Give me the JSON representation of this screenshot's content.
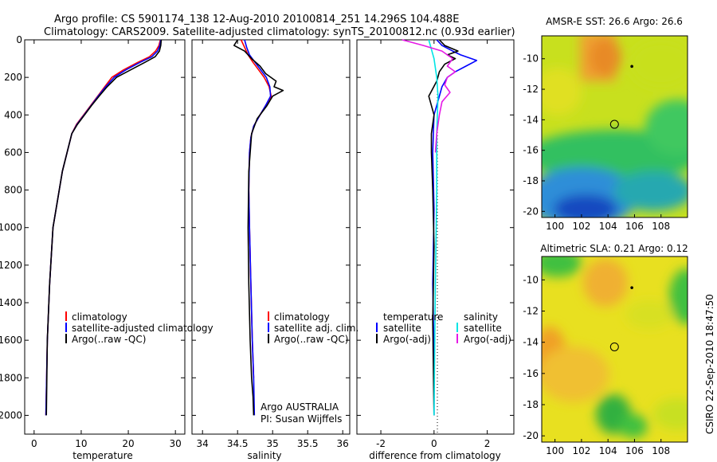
{
  "header": {
    "line1": "Argo profile: CS 5901174_138 12-Aug-2010 20100814_251 14.296S 104.488E",
    "line2": "Climatology: CARS2009. Satellite-adjusted climatology: synTS_20100812.nc (0.93d earlier)"
  },
  "side_label": "CSIRO 22-Sep-2010 18:47:50",
  "colors": {
    "red": "#ff0000",
    "blue": "#0000ff",
    "black": "#000000",
    "cyan": "#00e5e5",
    "magenta": "#e619e6"
  },
  "chart_data": [
    {
      "type": "line",
      "name": "temperature-panel",
      "xlabel": "temperature",
      "ylabel": "",
      "xlim": [
        -2,
        32
      ],
      "ylim": [
        0,
        2100
      ],
      "y_reversed": true,
      "xticks": [
        "0",
        "10",
        "20",
        "30"
      ],
      "xtick_values": [
        0,
        10,
        20,
        30
      ],
      "yticks": [
        "0",
        "200",
        "400",
        "600",
        "800",
        "1000",
        "1200",
        "1400",
        "1600",
        "1800",
        "2000"
      ],
      "ytick_values": [
        0,
        200,
        400,
        600,
        800,
        1000,
        1200,
        1400,
        1600,
        1800,
        2000
      ],
      "legend": [
        "climatology",
        "satellite-adjusted climatology",
        "Argo(..raw -QC)"
      ],
      "series": [
        {
          "name": "climatology",
          "color": "red",
          "x": [
            26.8,
            26.5,
            25.8,
            24.5,
            22.0,
            19.0,
            16.5,
            15.0,
            13.5,
            12.0,
            10.5,
            9.0,
            8.0,
            7.0,
            6.0,
            5.0,
            4.0,
            3.3,
            2.8,
            2.5
          ],
          "y": [
            0,
            30,
            60,
            90,
            120,
            160,
            200,
            250,
            300,
            350,
            400,
            450,
            500,
            600,
            700,
            850,
            1000,
            1300,
            1600,
            2000
          ]
        },
        {
          "name": "satellite-adjusted climatology",
          "color": "blue",
          "x": [
            26.9,
            26.7,
            26.2,
            25.0,
            22.5,
            19.5,
            17.0,
            15.2,
            13.6,
            12.1,
            10.6,
            9.1,
            8.0,
            7.0,
            6.0,
            5.0,
            4.0,
            3.3,
            2.8,
            2.5
          ],
          "y": [
            0,
            30,
            60,
            90,
            120,
            160,
            200,
            250,
            300,
            350,
            400,
            450,
            500,
            600,
            700,
            850,
            1000,
            1300,
            1600,
            2000
          ]
        },
        {
          "name": "Argo(..raw -QC)",
          "color": "black",
          "x": [
            27.0,
            26.9,
            26.6,
            25.7,
            23.5,
            20.5,
            17.5,
            15.5,
            13.8,
            12.2,
            10.7,
            9.2,
            8.0,
            7.0,
            6.0,
            5.0,
            4.0,
            3.3,
            2.8,
            2.6
          ],
          "y": [
            0,
            30,
            60,
            90,
            120,
            160,
            200,
            250,
            300,
            350,
            400,
            450,
            500,
            600,
            700,
            850,
            1000,
            1300,
            1600,
            2000
          ]
        }
      ]
    },
    {
      "type": "line",
      "name": "salinity-panel",
      "xlabel": "salinity",
      "ylabel": "",
      "xlim": [
        33.85,
        36.1
      ],
      "ylim": [
        0,
        2100
      ],
      "y_reversed": true,
      "xticks": [
        "34",
        "34.5",
        "35",
        "35.5",
        "36"
      ],
      "xtick_values": [
        34,
        34.5,
        35,
        35.5,
        36
      ],
      "legend": [
        "climatology",
        "satellite adj. clim.",
        "Argo(..raw -QC)"
      ],
      "annotation": [
        "Argo AUSTRALIA",
        "PI: Susan Wijffels"
      ],
      "series": [
        {
          "name": "climatology",
          "color": "red",
          "x": [
            34.55,
            34.6,
            34.65,
            34.72,
            34.8,
            34.88,
            34.95,
            34.98,
            34.9,
            34.82,
            34.73,
            34.69,
            34.67,
            34.66,
            34.67,
            34.69,
            34.71,
            34.73
          ],
          "y": [
            0,
            40,
            80,
            120,
            160,
            200,
            250,
            300,
            350,
            400,
            460,
            520,
            600,
            800,
            1000,
            1300,
            1600,
            1800
          ]
        },
        {
          "name": "satellite adj. clim.",
          "color": "blue",
          "x": [
            34.6,
            34.63,
            34.67,
            34.75,
            34.83,
            34.91,
            34.96,
            34.97,
            34.9,
            34.82,
            34.73,
            34.69,
            34.67,
            34.66,
            34.67,
            34.69,
            34.71,
            34.73,
            34.74
          ],
          "y": [
            0,
            40,
            80,
            120,
            160,
            200,
            250,
            300,
            350,
            400,
            460,
            520,
            600,
            800,
            1000,
            1300,
            1600,
            1800,
            2000
          ]
        },
        {
          "name": "Argo(..raw -QC)",
          "color": "black",
          "x": [
            34.5,
            34.45,
            34.6,
            34.7,
            34.82,
            34.9,
            35.05,
            35.02,
            35.15,
            35.0,
            34.92,
            34.78,
            34.7,
            34.66,
            34.65,
            34.66,
            34.68,
            34.7,
            34.72,
            34.73
          ],
          "y": [
            0,
            30,
            60,
            100,
            140,
            180,
            220,
            250,
            270,
            300,
            350,
            420,
            500,
            700,
            1000,
            1300,
            1600,
            1800,
            1900,
            2000
          ]
        }
      ]
    },
    {
      "type": "line",
      "name": "difference-panel",
      "xlabel": "difference from climatology",
      "ylabel": "",
      "xlim": [
        -2.9,
        3.0
      ],
      "ylim": [
        0,
        2100
      ],
      "y_reversed": true,
      "xticks": [
        "-2",
        "0",
        "2"
      ],
      "xtick_values": [
        -2,
        0,
        2
      ],
      "legend_temperature": [
        "temperature",
        "satellite",
        "Argo(-adj)"
      ],
      "legend_salinity": [
        "salinity",
        "satellite",
        "Argo(-adj)"
      ],
      "series": [
        {
          "name": "temperature satellite",
          "color": "blue",
          "x": [
            0.1,
            0.3,
            0.7,
            1.0,
            1.6,
            1.2,
            0.8,
            0.5,
            0.3,
            0.2,
            0.1,
            0.0,
            -0.05,
            0.0,
            -0.05,
            0.0,
            0.0
          ],
          "y": [
            0,
            30,
            60,
            80,
            110,
            140,
            170,
            200,
            250,
            300,
            350,
            400,
            600,
            900,
            1300,
            1700,
            2000
          ]
        },
        {
          "name": "temperature Argo(-adj)",
          "color": "black",
          "x": [
            0.2,
            0.4,
            0.9,
            0.5,
            0.8,
            0.4,
            0.2,
            0.1,
            -0.2,
            0.0,
            -0.1,
            -0.1,
            -0.05,
            0.0,
            -0.05,
            0.0
          ],
          "y": [
            0,
            30,
            60,
            80,
            100,
            130,
            170,
            220,
            300,
            400,
            500,
            600,
            800,
            1100,
            1500,
            2000
          ]
        },
        {
          "name": "salinity satellite",
          "color": "cyan",
          "x": [
            -0.2,
            -0.1,
            0.0,
            0.1,
            0.15,
            0.1,
            0.1,
            0.05,
            0.0
          ],
          "y": [
            0,
            50,
            100,
            200,
            300,
            500,
            800,
            1300,
            2000
          ]
        },
        {
          "name": "salinity Argo(-adj)",
          "color": "magenta",
          "x": [
            -1.2,
            -0.4,
            0.3,
            0.7,
            0.5,
            0.8,
            0.5,
            0.4,
            0.6,
            0.3,
            0.2,
            0.1,
            0.05
          ],
          "y": [
            0,
            30,
            60,
            100,
            140,
            170,
            200,
            240,
            280,
            330,
            400,
            500,
            600
          ]
        }
      ]
    },
    {
      "type": "heatmap",
      "name": "sst-map",
      "title": "AMSR-E SST: 26.6  Argo: 26.6",
      "xlim": [
        99,
        110
      ],
      "ylim": [
        -20.4,
        -8.5
      ],
      "xticks": [
        "100",
        "102",
        "104",
        "106",
        "108"
      ],
      "xtick_values": [
        100,
        102,
        104,
        106,
        108
      ],
      "yticks": [
        "-10",
        "-12",
        "-14",
        "-16",
        "-18",
        "-20"
      ],
      "ytick_values": [
        -10,
        -12,
        -14,
        -16,
        -18,
        -20
      ],
      "profile_location": [
        104.488,
        -14.296
      ],
      "marker_location": [
        105.8,
        -10.5
      ]
    },
    {
      "type": "heatmap",
      "name": "sla-map",
      "title": "Altimetric SLA: 0.21  Argo: 0.12",
      "xlim": [
        99,
        110
      ],
      "ylim": [
        -20.4,
        -8.5
      ],
      "xticks": [
        "100",
        "102",
        "104",
        "106",
        "108"
      ],
      "xtick_values": [
        100,
        102,
        104,
        106,
        108
      ],
      "yticks": [
        "-10",
        "-12",
        "-14",
        "-16",
        "-18",
        "-20"
      ],
      "ytick_values": [
        -10,
        -12,
        -14,
        -16,
        -18,
        -20
      ],
      "profile_location": [
        104.488,
        -14.296
      ],
      "marker_location": [
        105.8,
        -10.5
      ]
    }
  ]
}
